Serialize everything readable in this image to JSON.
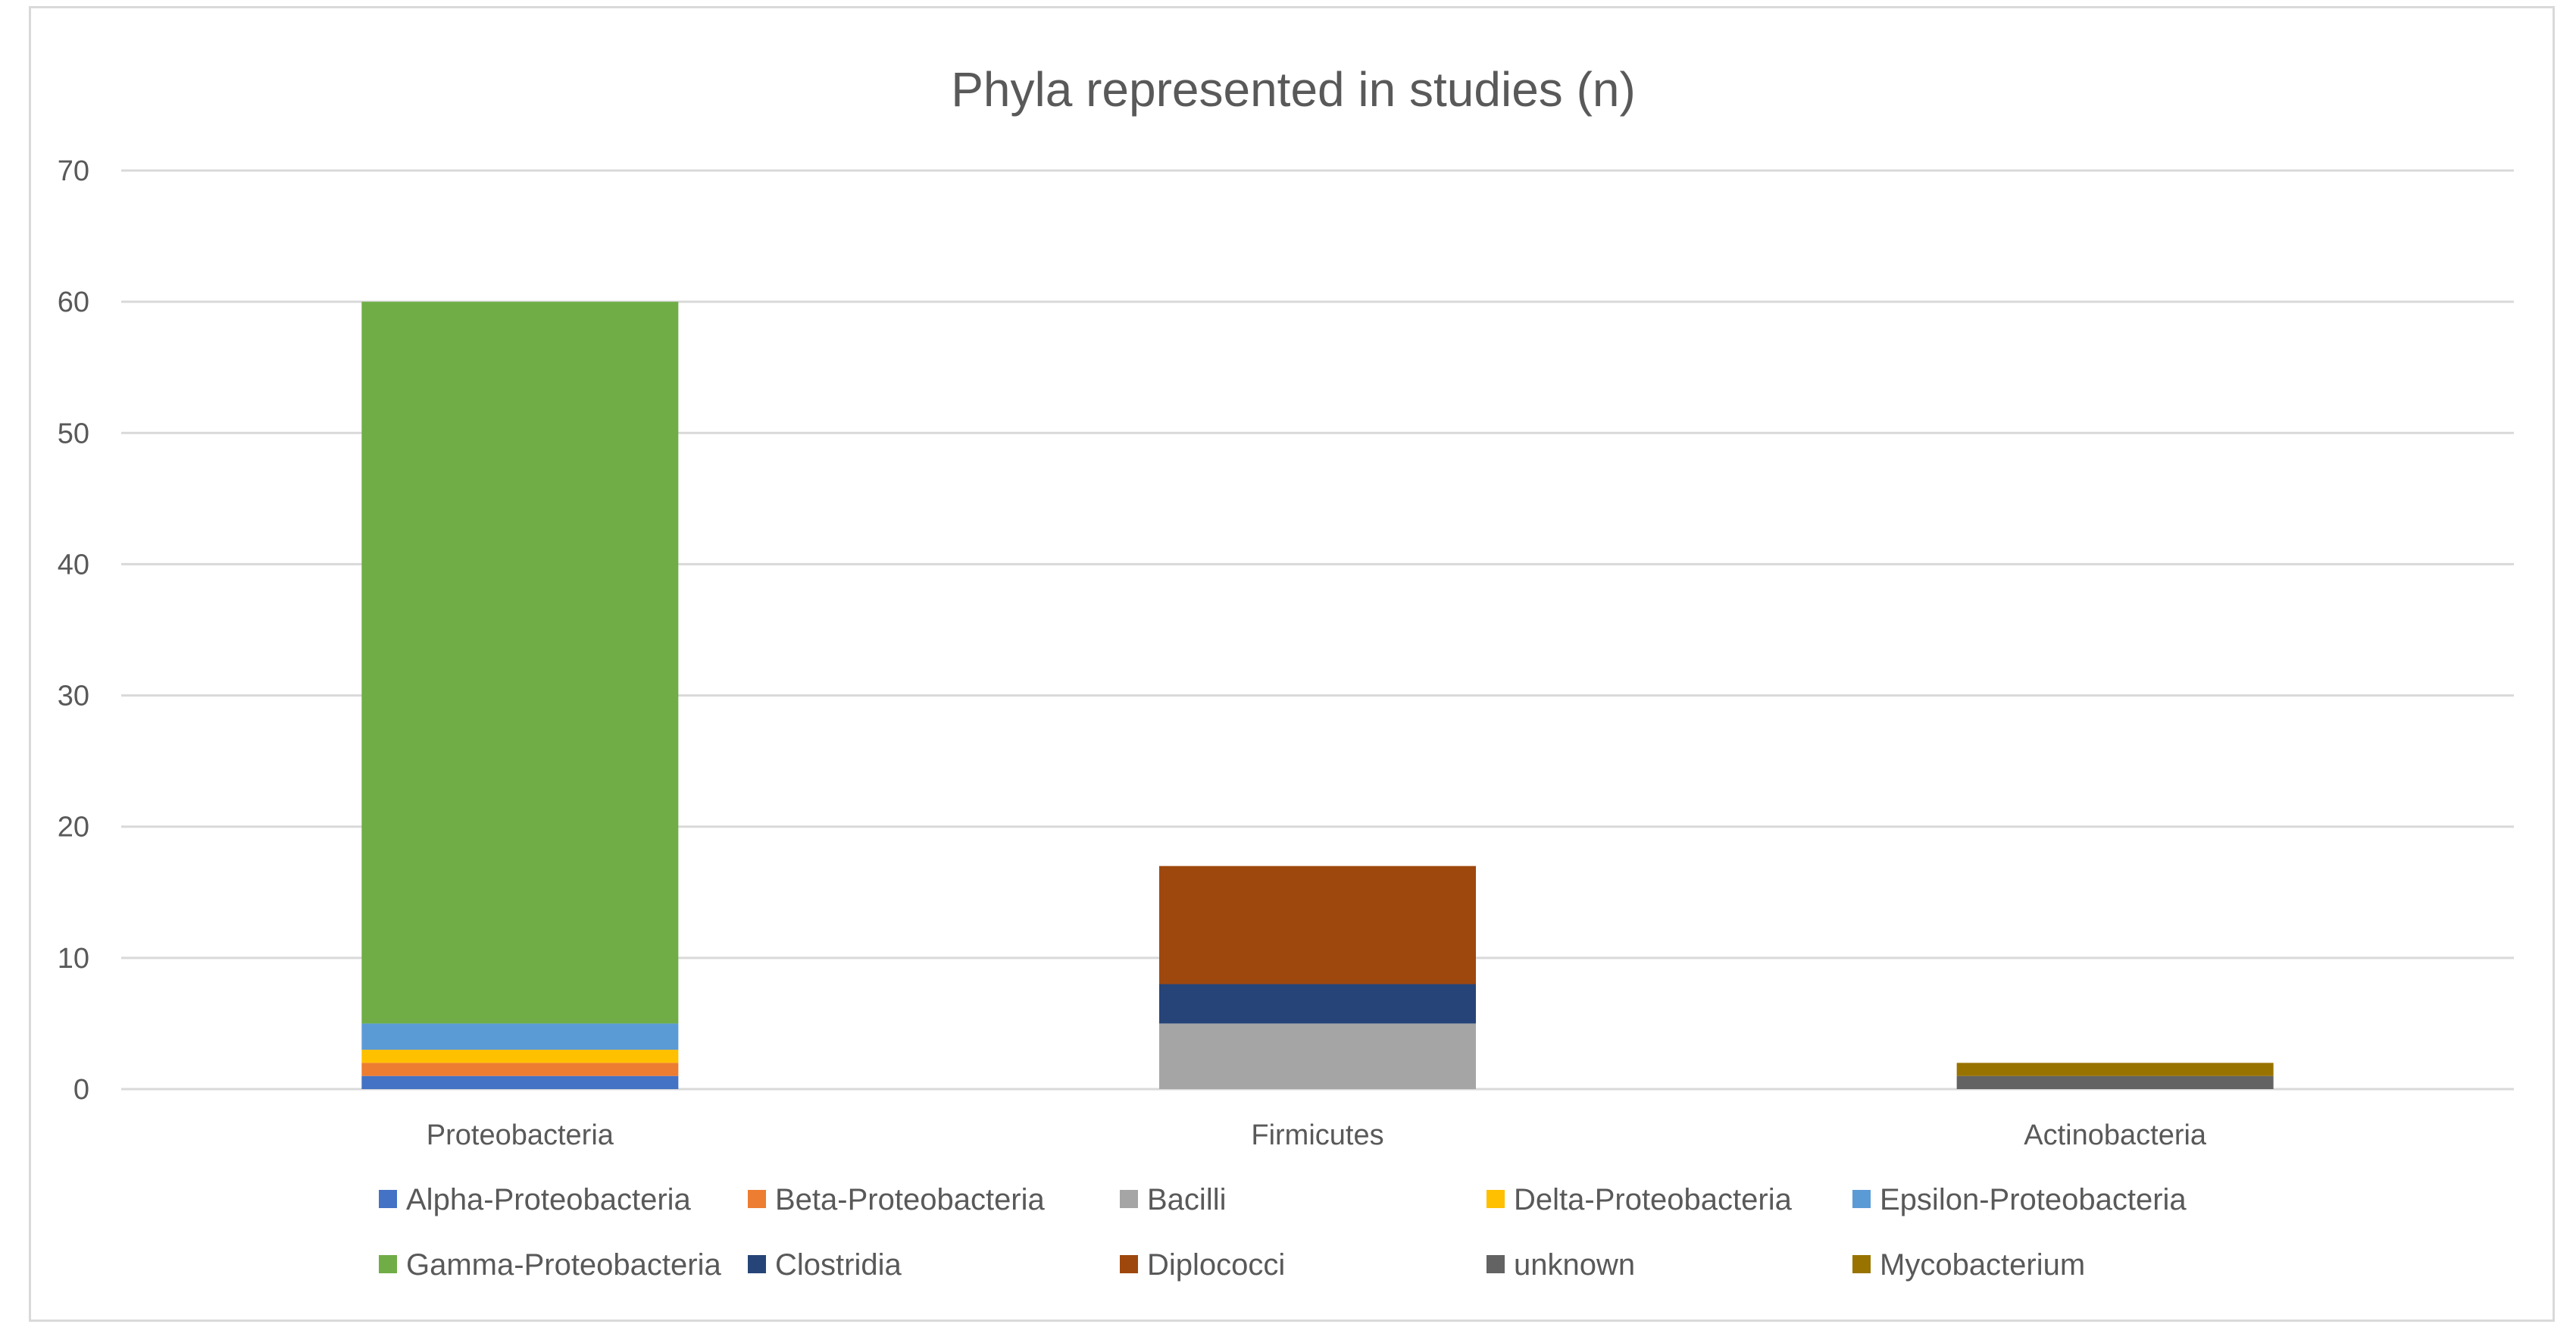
{
  "chart_data": {
    "type": "bar",
    "stacked": true,
    "title": "Phyla represented in studies (n)",
    "xlabel": "",
    "ylabel": "",
    "ylim": [
      0,
      70
    ],
    "yticks": [
      0,
      10,
      20,
      30,
      40,
      50,
      60,
      70
    ],
    "grid": true,
    "legend_position": "bottom",
    "categories": [
      "Proteobacteria",
      "Firmicutes",
      "Actinobacteria"
    ],
    "series": [
      {
        "name": "Alpha-Proteobacteria",
        "color": "#4472C4",
        "values": [
          1,
          0,
          0
        ]
      },
      {
        "name": "Beta-Proteobacteria",
        "color": "#ED7D31",
        "values": [
          1,
          0,
          0
        ]
      },
      {
        "name": "Bacilli",
        "color": "#A5A5A5",
        "values": [
          0,
          5,
          0
        ]
      },
      {
        "name": "Delta-Proteobacteria",
        "color": "#FFC000",
        "values": [
          1,
          0,
          0
        ]
      },
      {
        "name": "Epsilon-Proteobacteria",
        "color": "#5B9BD5",
        "values": [
          2,
          0,
          0
        ]
      },
      {
        "name": "Gamma-Proteobacteria",
        "color": "#70AD47",
        "values": [
          55,
          0,
          0
        ]
      },
      {
        "name": "Clostridia",
        "color": "#264478",
        "values": [
          0,
          3,
          0
        ]
      },
      {
        "name": "Diplococci",
        "color": "#9E480E",
        "values": [
          0,
          9,
          0
        ]
      },
      {
        "name": "unknown",
        "color": "#636363",
        "values": [
          0,
          0,
          1
        ]
      },
      {
        "name": "Mycobacterium",
        "color": "#997300",
        "values": [
          0,
          0,
          1
        ]
      }
    ]
  }
}
